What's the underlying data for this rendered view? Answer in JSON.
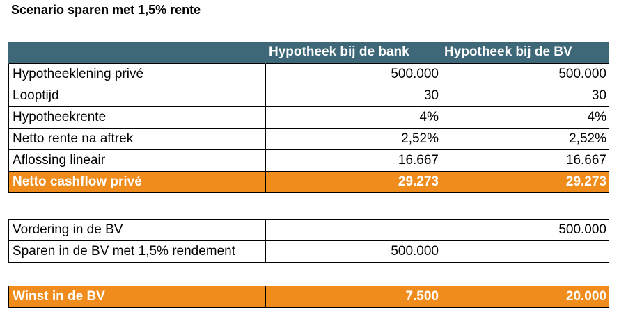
{
  "title": "Scenario sparen met 1,5% rente",
  "table1": {
    "headers": [
      "",
      "Hypotheek bij de bank",
      "Hypotheek bij de BV"
    ],
    "rows": [
      {
        "label": "Hypotheeklening privé",
        "bank": "500.000",
        "bv": "500.000"
      },
      {
        "label": "Looptijd",
        "bank": "30",
        "bv": "30"
      },
      {
        "label": "Hypotheekrente",
        "bank": "4%",
        "bv": "4%"
      },
      {
        "label": "Netto rente na aftrek",
        "bank": "2,52%",
        "bv": "2,52%"
      },
      {
        "label": "Aflossing lineair",
        "bank": "16.667",
        "bv": "16.667"
      },
      {
        "label": "Netto cashflow privé",
        "bank": "29.273",
        "bv": "29.273"
      }
    ]
  },
  "table2": {
    "rows": [
      {
        "label": "Vordering in de BV",
        "bank": "",
        "bv": "500.000"
      },
      {
        "label": "Sparen in de BV met 1,5% rendement",
        "bank": "500.000",
        "bv": ""
      }
    ]
  },
  "table3": {
    "rows": [
      {
        "label": "Winst in de BV",
        "bank": "7.500",
        "bv": "20.000"
      }
    ]
  },
  "colors": {
    "header_bg": "#3e6877",
    "highlight_bg": "#ef8c1c"
  }
}
